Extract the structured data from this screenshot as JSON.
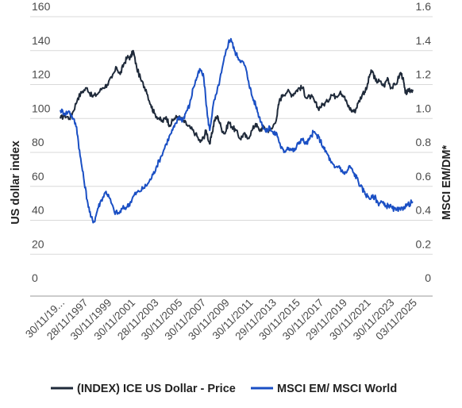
{
  "chart_data": {
    "type": "line",
    "ylabel_left": "US dollar index",
    "ylabel_right": "MSCI EM/DM*",
    "ylim_left": [
      0,
      160
    ],
    "ylim_right": [
      0,
      1.6
    ],
    "yticks_left": [
      "0",
      "20",
      "40",
      "60",
      "80",
      "100",
      "120",
      "140",
      "160"
    ],
    "yticks_right": [
      "0",
      "0.2",
      "0.4",
      "0.6",
      "0.8",
      "1.0",
      "1.2",
      "1.4",
      "1.6"
    ],
    "xlim": [
      1995.92,
      2025.84
    ],
    "xticks": [
      {
        "label": "30/11/19...",
        "x": 1995.92
      },
      {
        "label": "28/11/1997",
        "x": 1997.91
      },
      {
        "label": "30/11/1999",
        "x": 1999.92
      },
      {
        "label": "30/11/2001",
        "x": 2001.92
      },
      {
        "label": "28/11/2003",
        "x": 2003.91
      },
      {
        "label": "30/11/2005",
        "x": 2005.92
      },
      {
        "label": "30/11/2007",
        "x": 2007.92
      },
      {
        "label": "30/11/2009",
        "x": 2009.92
      },
      {
        "label": "30/11/2011",
        "x": 2011.92
      },
      {
        "label": "29/11/2013",
        "x": 2013.91
      },
      {
        "label": "30/11/2015",
        "x": 2015.92
      },
      {
        "label": "30/11/2017",
        "x": 2017.92
      },
      {
        "label": "29/11/2019",
        "x": 2019.91
      },
      {
        "label": "30/11/2021",
        "x": 2021.92
      },
      {
        "label": "30/11/2023",
        "x": 2023.92
      },
      {
        "label": "03/11/2025",
        "x": 2025.84
      }
    ],
    "grid": true,
    "legend_position": "bottom",
    "series": [
      {
        "name": "(INDEX) ICE US Dollar - Price",
        "axis": "left",
        "color": "#1f2a3a",
        "points": [
          [
            1995.92,
            100
          ],
          [
            1996.3,
            102
          ],
          [
            1996.7,
            100
          ],
          [
            1997.0,
            104
          ],
          [
            1997.4,
            112
          ],
          [
            1997.8,
            116
          ],
          [
            1998.2,
            118
          ],
          [
            1998.6,
            113
          ],
          [
            1999.0,
            114
          ],
          [
            1999.5,
            118
          ],
          [
            1999.9,
            120
          ],
          [
            2000.3,
            124
          ],
          [
            2000.7,
            130
          ],
          [
            2001.0,
            126
          ],
          [
            2001.3,
            132
          ],
          [
            2001.6,
            136
          ],
          [
            2001.9,
            136
          ],
          [
            2002.1,
            140
          ],
          [
            2002.4,
            130
          ],
          [
            2002.8,
            122
          ],
          [
            2003.2,
            117
          ],
          [
            2003.6,
            108
          ],
          [
            2003.9,
            103
          ],
          [
            2004.3,
            100
          ],
          [
            2004.6,
            98
          ],
          [
            2004.9,
            101
          ],
          [
            2005.2,
            96
          ],
          [
            2005.6,
            100
          ],
          [
            2005.9,
            101
          ],
          [
            2006.3,
            99
          ],
          [
            2006.7,
            96
          ],
          [
            2007.0,
            94
          ],
          [
            2007.4,
            91
          ],
          [
            2007.8,
            86
          ],
          [
            2008.1,
            89
          ],
          [
            2008.3,
            93
          ],
          [
            2008.6,
            85
          ],
          [
            2008.8,
            91
          ],
          [
            2009.0,
            99
          ],
          [
            2009.3,
            101
          ],
          [
            2009.6,
            94
          ],
          [
            2009.9,
            91
          ],
          [
            2010.2,
            98
          ],
          [
            2010.5,
            95
          ],
          [
            2010.8,
            93
          ],
          [
            2011.2,
            88
          ],
          [
            2011.5,
            91
          ],
          [
            2011.8,
            88
          ],
          [
            2012.2,
            93
          ],
          [
            2012.5,
            97
          ],
          [
            2012.8,
            93
          ],
          [
            2013.2,
            95
          ],
          [
            2013.5,
            93
          ],
          [
            2013.9,
            94
          ],
          [
            2014.3,
            101
          ],
          [
            2014.5,
            110
          ],
          [
            2014.8,
            114
          ],
          [
            2015.2,
            116
          ],
          [
            2015.6,
            114
          ],
          [
            2015.9,
            116
          ],
          [
            2016.2,
            118
          ],
          [
            2016.5,
            118
          ],
          [
            2016.8,
            112
          ],
          [
            2017.2,
            113
          ],
          [
            2017.5,
            110
          ],
          [
            2017.8,
            106
          ],
          [
            2018.2,
            108
          ],
          [
            2018.6,
            110
          ],
          [
            2018.9,
            114
          ],
          [
            2019.3,
            113
          ],
          [
            2019.7,
            116
          ],
          [
            2020.0,
            113
          ],
          [
            2020.3,
            108
          ],
          [
            2020.6,
            105
          ],
          [
            2020.9,
            104
          ],
          [
            2021.2,
            109
          ],
          [
            2021.6,
            115
          ],
          [
            2021.9,
            117
          ],
          [
            2022.2,
            126
          ],
          [
            2022.4,
            128
          ],
          [
            2022.7,
            122
          ],
          [
            2023.0,
            122
          ],
          [
            2023.4,
            119
          ],
          [
            2023.7,
            124
          ],
          [
            2024.0,
            118
          ],
          [
            2024.4,
            120
          ],
          [
            2024.8,
            127
          ],
          [
            2025.0,
            124
          ],
          [
            2025.2,
            115
          ],
          [
            2025.5,
            116
          ],
          [
            2025.84,
            117
          ]
        ]
      },
      {
        "name": "MSCI EM/ MSCI World",
        "axis": "right",
        "color": "#1a4fc4",
        "points": [
          [
            1995.92,
            1.05
          ],
          [
            1996.3,
            1.03
          ],
          [
            1996.7,
            1.04
          ],
          [
            1997.0,
            1.0
          ],
          [
            1997.3,
            0.95
          ],
          [
            1997.6,
            0.78
          ],
          [
            1997.9,
            0.65
          ],
          [
            1998.2,
            0.52
          ],
          [
            1998.5,
            0.42
          ],
          [
            1998.8,
            0.39
          ],
          [
            1999.1,
            0.47
          ],
          [
            1999.4,
            0.52
          ],
          [
            1999.8,
            0.57
          ],
          [
            2000.1,
            0.53
          ],
          [
            2000.5,
            0.45
          ],
          [
            2000.9,
            0.44
          ],
          [
            2001.2,
            0.47
          ],
          [
            2001.6,
            0.48
          ],
          [
            2001.9,
            0.51
          ],
          [
            2002.2,
            0.55
          ],
          [
            2002.6,
            0.57
          ],
          [
            2003.0,
            0.59
          ],
          [
            2003.4,
            0.62
          ],
          [
            2003.8,
            0.67
          ],
          [
            2004.1,
            0.72
          ],
          [
            2004.5,
            0.78
          ],
          [
            2004.9,
            0.85
          ],
          [
            2005.3,
            0.91
          ],
          [
            2005.6,
            0.95
          ],
          [
            2006.0,
            1.01
          ],
          [
            2006.3,
            0.99
          ],
          [
            2006.6,
            1.04
          ],
          [
            2006.9,
            1.08
          ],
          [
            2007.2,
            1.18
          ],
          [
            2007.5,
            1.24
          ],
          [
            2007.8,
            1.29
          ],
          [
            2008.1,
            1.24
          ],
          [
            2008.4,
            1.02
          ],
          [
            2008.6,
            0.93
          ],
          [
            2008.9,
            1.08
          ],
          [
            2009.2,
            1.15
          ],
          [
            2009.6,
            1.27
          ],
          [
            2009.9,
            1.37
          ],
          [
            2010.2,
            1.45
          ],
          [
            2010.4,
            1.47
          ],
          [
            2010.7,
            1.4
          ],
          [
            2011.0,
            1.36
          ],
          [
            2011.3,
            1.34
          ],
          [
            2011.6,
            1.31
          ],
          [
            2011.9,
            1.22
          ],
          [
            2012.2,
            1.13
          ],
          [
            2012.5,
            1.08
          ],
          [
            2012.8,
            1.01
          ],
          [
            2013.1,
            0.96
          ],
          [
            2013.4,
            0.92
          ],
          [
            2013.7,
            0.95
          ],
          [
            2014.0,
            0.91
          ],
          [
            2014.3,
            0.91
          ],
          [
            2014.6,
            0.84
          ],
          [
            2014.9,
            0.8
          ],
          [
            2015.2,
            0.83
          ],
          [
            2015.5,
            0.82
          ],
          [
            2015.8,
            0.81
          ],
          [
            2016.1,
            0.85
          ],
          [
            2016.4,
            0.88
          ],
          [
            2016.8,
            0.85
          ],
          [
            2017.1,
            0.88
          ],
          [
            2017.4,
            0.92
          ],
          [
            2017.7,
            0.9
          ],
          [
            2018.0,
            0.87
          ],
          [
            2018.3,
            0.82
          ],
          [
            2018.6,
            0.79
          ],
          [
            2018.9,
            0.74
          ],
          [
            2019.2,
            0.71
          ],
          [
            2019.6,
            0.72
          ],
          [
            2019.9,
            0.68
          ],
          [
            2020.2,
            0.68
          ],
          [
            2020.5,
            0.72
          ],
          [
            2020.8,
            0.68
          ],
          [
            2021.1,
            0.65
          ],
          [
            2021.4,
            0.6
          ],
          [
            2021.7,
            0.57
          ],
          [
            2022.0,
            0.54
          ],
          [
            2022.3,
            0.53
          ],
          [
            2022.6,
            0.54
          ],
          [
            2022.9,
            0.5
          ],
          [
            2023.2,
            0.51
          ],
          [
            2023.5,
            0.48
          ],
          [
            2023.8,
            0.49
          ],
          [
            2024.1,
            0.47
          ],
          [
            2024.4,
            0.46
          ],
          [
            2024.8,
            0.46
          ],
          [
            2025.1,
            0.48
          ],
          [
            2025.4,
            0.49
          ],
          [
            2025.84,
            0.51
          ]
        ]
      }
    ]
  }
}
